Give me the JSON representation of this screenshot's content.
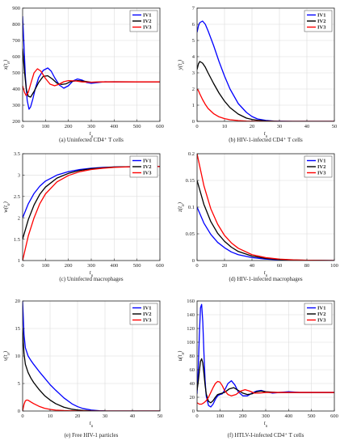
{
  "legend_labels": [
    "IV1",
    "IV2",
    "IV3"
  ],
  "series_colors": [
    "#0000ff",
    "#000000",
    "#ff0000"
  ],
  "chart_data": [
    {
      "type": "line",
      "caption": "(a) Uninfected CD4⁺ T cells",
      "xlabel": "t_n",
      "ylabel": "x(t_n)",
      "xlim": [
        0,
        600
      ],
      "ylim": [
        200,
        900
      ],
      "xticks": [
        0,
        100,
        200,
        300,
        400,
        500,
        600
      ],
      "yticks": [
        200,
        300,
        400,
        500,
        600,
        700,
        800,
        900
      ],
      "grid": true,
      "legend": "top-right",
      "series": [
        {
          "name": "IV1",
          "x": [
            0,
            5,
            12,
            20,
            28,
            35,
            45,
            55,
            70,
            90,
            110,
            125,
            140,
            160,
            180,
            200,
            220,
            240,
            260,
            280,
            300,
            330,
            360,
            400,
            450,
            500,
            600
          ],
          "y": [
            850,
            700,
            480,
            330,
            275,
            290,
            340,
            400,
            470,
            515,
            530,
            510,
            470,
            425,
            405,
            420,
            450,
            462,
            455,
            440,
            435,
            440,
            445,
            443,
            444,
            444,
            444
          ]
        },
        {
          "name": "IV2",
          "x": [
            0,
            8,
            16,
            25,
            35,
            50,
            70,
            90,
            110,
            130,
            150,
            170,
            190,
            210,
            240,
            270,
            300,
            350,
            400,
            500,
            600
          ],
          "y": [
            650,
            510,
            400,
            355,
            350,
            385,
            440,
            478,
            482,
            462,
            436,
            428,
            432,
            446,
            452,
            448,
            442,
            444,
            445,
            444,
            444
          ]
        },
        {
          "name": "IV3",
          "x": [
            0,
            8,
            15,
            25,
            35,
            50,
            65,
            80,
            100,
            120,
            140,
            160,
            180,
            200,
            230,
            260,
            300,
            350,
            400,
            500,
            600
          ],
          "y": [
            420,
            380,
            360,
            380,
            430,
            500,
            525,
            510,
            465,
            430,
            420,
            430,
            445,
            452,
            450,
            444,
            442,
            444,
            444,
            444,
            444
          ]
        }
      ]
    },
    {
      "type": "line",
      "caption": "(b) HIV-1-infected CD4⁺ T cells",
      "xlabel": "t_n",
      "ylabel": "y(t_n)",
      "xlim": [
        0,
        50
      ],
      "ylim": [
        0,
        7
      ],
      "xticks": [
        0,
        10,
        20,
        30,
        40,
        50
      ],
      "yticks": [
        0,
        1,
        2,
        3,
        4,
        5,
        6,
        7
      ],
      "grid": true,
      "legend": "top-right",
      "series": [
        {
          "name": "IV1",
          "x": [
            0,
            0.5,
            1,
            2,
            3,
            4,
            6,
            8,
            10,
            12,
            15,
            18,
            20,
            22,
            25,
            28,
            30,
            35,
            40,
            50
          ],
          "y": [
            5.5,
            5.9,
            6.1,
            6.2,
            6.0,
            5.6,
            4.7,
            3.7,
            2.8,
            2.0,
            1.1,
            0.55,
            0.3,
            0.15,
            0.06,
            0.02,
            0.01,
            0,
            0,
            0
          ]
        },
        {
          "name": "IV2",
          "x": [
            0,
            0.5,
            1,
            2,
            3,
            4,
            6,
            8,
            10,
            12,
            15,
            18,
            20,
            22,
            25,
            28,
            30,
            40,
            50
          ],
          "y": [
            3.2,
            3.55,
            3.7,
            3.6,
            3.35,
            3.0,
            2.35,
            1.75,
            1.25,
            0.85,
            0.45,
            0.2,
            0.12,
            0.07,
            0.03,
            0.01,
            0,
            0,
            0
          ]
        },
        {
          "name": "IV3",
          "x": [
            0,
            0.5,
            1,
            2,
            3,
            4,
            6,
            8,
            10,
            12,
            15,
            18,
            20,
            25,
            30,
            40,
            50
          ],
          "y": [
            2.0,
            1.9,
            1.7,
            1.35,
            1.05,
            0.8,
            0.48,
            0.28,
            0.17,
            0.1,
            0.05,
            0.02,
            0.01,
            0,
            0,
            0,
            0
          ]
        }
      ]
    },
    {
      "type": "line",
      "caption": "(c) Uninfected macrophages",
      "xlabel": "t_n",
      "ylabel": "w(t_n)",
      "xlim": [
        0,
        600
      ],
      "ylim": [
        1,
        3.5
      ],
      "xticks": [
        0,
        100,
        200,
        300,
        400,
        500,
        600
      ],
      "yticks": [
        1,
        1.5,
        2,
        2.5,
        3,
        3.5
      ],
      "grid": true,
      "legend": "top-right",
      "series": [
        {
          "name": "IV1",
          "x": [
            0,
            25,
            50,
            75,
            100,
            150,
            200,
            250,
            300,
            350,
            400,
            500,
            600
          ],
          "y": [
            2.0,
            2.33,
            2.57,
            2.74,
            2.86,
            3.0,
            3.08,
            3.13,
            3.16,
            3.18,
            3.19,
            3.2,
            3.2
          ]
        },
        {
          "name": "IV2",
          "x": [
            0,
            25,
            50,
            75,
            100,
            150,
            200,
            250,
            300,
            350,
            400,
            500,
            600
          ],
          "y": [
            1.5,
            1.96,
            2.3,
            2.55,
            2.72,
            2.93,
            3.04,
            3.11,
            3.15,
            3.17,
            3.19,
            3.2,
            3.2
          ]
        },
        {
          "name": "IV3",
          "x": [
            0,
            25,
            50,
            75,
            100,
            150,
            200,
            250,
            300,
            350,
            400,
            500,
            600
          ],
          "y": [
            1.0,
            1.58,
            2.0,
            2.33,
            2.56,
            2.84,
            2.99,
            3.08,
            3.13,
            3.16,
            3.18,
            3.2,
            3.2
          ]
        }
      ]
    },
    {
      "type": "line",
      "caption": "(d) HIV-1-infected macrophages",
      "xlabel": "t_n",
      "ylabel": "z(t_n)",
      "xlim": [
        0,
        100
      ],
      "ylim": [
        0,
        0.2
      ],
      "xticks": [
        0,
        20,
        40,
        60,
        80,
        100
      ],
      "yticks": [
        0,
        0.05,
        0.1,
        0.15,
        0.2
      ],
      "grid": true,
      "legend": "top-right",
      "series": [
        {
          "name": "IV1",
          "x": [
            0,
            5,
            10,
            15,
            20,
            25,
            30,
            40,
            50,
            60,
            70,
            80,
            100
          ],
          "y": [
            0.1,
            0.07,
            0.049,
            0.034,
            0.024,
            0.016,
            0.011,
            0.0055,
            0.0027,
            0.0013,
            0.0006,
            0.0003,
            0
          ]
        },
        {
          "name": "IV2",
          "x": [
            0,
            5,
            10,
            15,
            20,
            25,
            30,
            40,
            50,
            60,
            70,
            80,
            100
          ],
          "y": [
            0.15,
            0.105,
            0.073,
            0.051,
            0.036,
            0.025,
            0.017,
            0.0083,
            0.004,
            0.002,
            0.001,
            0.0005,
            0
          ]
        },
        {
          "name": "IV3",
          "x": [
            0,
            5,
            10,
            15,
            20,
            25,
            30,
            40,
            50,
            60,
            70,
            80,
            100
          ],
          "y": [
            0.2,
            0.14,
            0.097,
            0.068,
            0.047,
            0.033,
            0.023,
            0.011,
            0.0054,
            0.0026,
            0.0013,
            0.0006,
            0
          ]
        }
      ]
    },
    {
      "type": "line",
      "caption": "(e) Free HIV-1 particles",
      "xlabel": "t_n",
      "ylabel": "v(t_n)",
      "xlim": [
        0,
        50
      ],
      "ylim": [
        0,
        20
      ],
      "xticks": [
        0,
        10,
        20,
        30,
        40,
        50
      ],
      "yticks": [
        0,
        5,
        10,
        15,
        20
      ],
      "grid": true,
      "legend": "top-right",
      "series": [
        {
          "name": "IV1",
          "x": [
            0,
            0.5,
            1,
            2,
            3,
            4,
            6,
            8,
            10,
            12,
            15,
            18,
            20,
            22,
            25,
            28,
            30,
            40,
            50
          ],
          "y": [
            20,
            14,
            11.5,
            10,
            9.2,
            8.5,
            7.2,
            6.0,
            4.8,
            3.8,
            2.4,
            1.3,
            0.8,
            0.45,
            0.18,
            0.06,
            0.02,
            0,
            0
          ]
        },
        {
          "name": "IV2",
          "x": [
            0,
            0.5,
            1,
            2,
            3,
            4,
            6,
            8,
            10,
            12,
            15,
            18,
            20,
            22,
            25,
            30,
            40,
            50
          ],
          "y": [
            15,
            10.5,
            8.5,
            7.0,
            6.0,
            5.2,
            3.9,
            2.8,
            2.0,
            1.35,
            0.7,
            0.32,
            0.18,
            0.1,
            0.04,
            0,
            0,
            0
          ]
        },
        {
          "name": "IV3",
          "x": [
            0,
            0.5,
            1,
            1.5,
            2,
            3,
            4,
            6,
            8,
            10,
            12,
            15,
            20,
            25,
            30,
            40,
            50
          ],
          "y": [
            0,
            1.2,
            1.85,
            2.0,
            1.95,
            1.65,
            1.35,
            0.85,
            0.5,
            0.3,
            0.17,
            0.08,
            0.02,
            0,
            0,
            0,
            0
          ]
        }
      ]
    },
    {
      "type": "line",
      "caption": "(f) HTLV-I-infected CD4⁺ T cells",
      "xlabel": "t_n",
      "ylabel": "u(t_n)",
      "xlim": [
        0,
        600
      ],
      "ylim": [
        0,
        160
      ],
      "xticks": [
        0,
        100,
        200,
        300,
        400,
        500,
        600
      ],
      "yticks": [
        0,
        20,
        40,
        60,
        80,
        100,
        120,
        140,
        160
      ],
      "grid": true,
      "legend": "top-right",
      "series": [
        {
          "name": "IV1",
          "x": [
            0,
            5,
            10,
            15,
            20,
            25,
            30,
            35,
            40,
            50,
            60,
            70,
            80,
            90,
            100,
            110,
            120,
            135,
            150,
            165,
            180,
            200,
            220,
            240,
            260,
            280,
            300,
            330,
            360,
            400,
            450,
            500,
            600
          ],
          "y": [
            25,
            60,
            110,
            150,
            155,
            130,
            85,
            45,
            22,
            8,
            6,
            10,
            17,
            22,
            24,
            25,
            30,
            40,
            44,
            38,
            28,
            22,
            22,
            26,
            29,
            30,
            28,
            26,
            27,
            28,
            27,
            27,
            27
          ]
        },
        {
          "name": "IV2",
          "x": [
            0,
            5,
            10,
            15,
            20,
            25,
            30,
            35,
            40,
            50,
            60,
            70,
            80,
            90,
            100,
            120,
            140,
            160,
            180,
            200,
            220,
            240,
            260,
            280,
            300,
            350,
            400,
            500,
            600
          ],
          "y": [
            30,
            42,
            58,
            72,
            76,
            70,
            55,
            38,
            25,
            14,
            12,
            15,
            20,
            24,
            25,
            27,
            32,
            34,
            30,
            26,
            24,
            25,
            28,
            29,
            28,
            27,
            27,
            27,
            27
          ]
        },
        {
          "name": "IV3",
          "x": [
            0,
            10,
            20,
            30,
            40,
            50,
            60,
            70,
            80,
            90,
            100,
            110,
            120,
            135,
            150,
            170,
            190,
            210,
            230,
            250,
            270,
            300,
            350,
            400,
            500,
            600
          ],
          "y": [
            12,
            10,
            10,
            12,
            15,
            20,
            27,
            34,
            40,
            43,
            42,
            37,
            30,
            24,
            22,
            24,
            29,
            31,
            29,
            26,
            26,
            27,
            27,
            27,
            27,
            27
          ]
        }
      ]
    }
  ]
}
